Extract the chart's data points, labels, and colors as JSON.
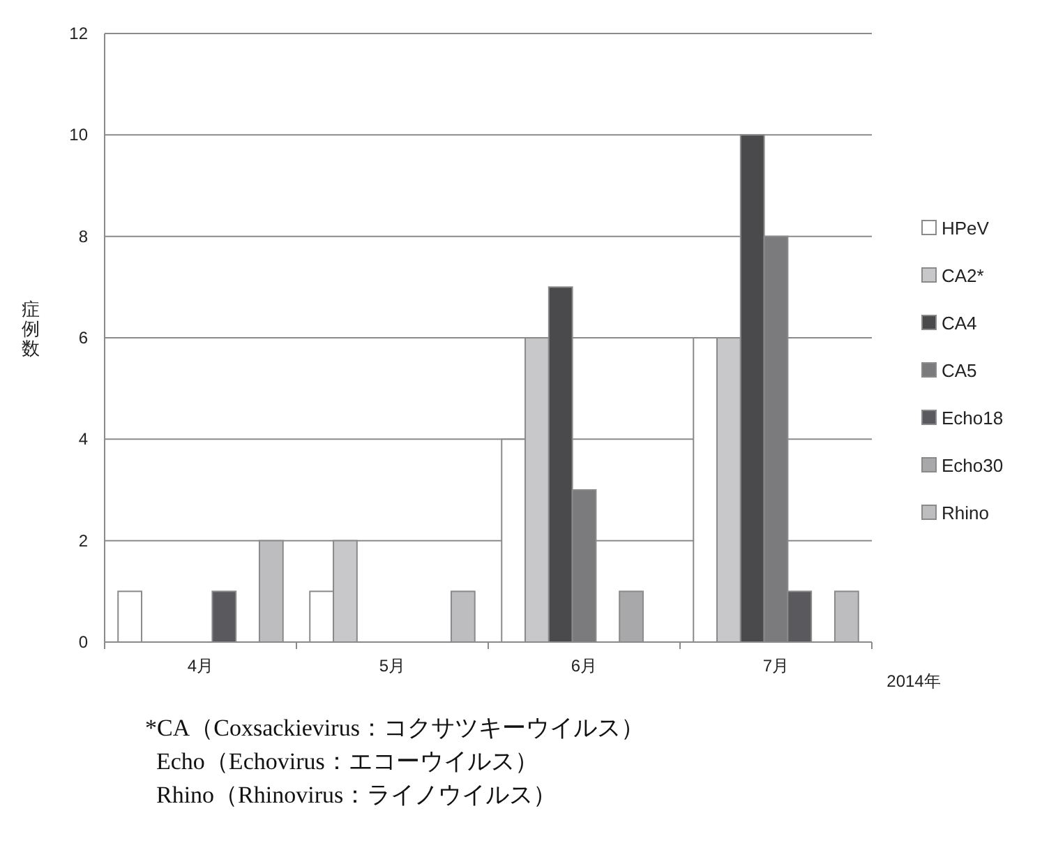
{
  "chart_data": {
    "type": "bar",
    "ylabel": "症例数",
    "xlabel": "2014年",
    "categories": [
      "4月",
      "5月",
      "6月",
      "7月"
    ],
    "series": [
      {
        "name": "HPeV",
        "color": "#ffffff",
        "values": [
          1,
          1,
          4,
          6
        ]
      },
      {
        "name": "CA2*",
        "color": "#c8c8ca",
        "values": [
          0,
          2,
          6,
          6
        ]
      },
      {
        "name": "CA4",
        "color": "#4a4a4c",
        "values": [
          0,
          0,
          7,
          10
        ]
      },
      {
        "name": "CA5",
        "color": "#7b7b7d",
        "values": [
          0,
          0,
          3,
          8
        ]
      },
      {
        "name": "Echo18",
        "color": "#5a5a5e",
        "values": [
          1,
          0,
          0,
          1
        ]
      },
      {
        "name": "Echo30",
        "color": "#a8a8aa",
        "values": [
          0,
          0,
          1,
          0
        ]
      },
      {
        "name": "Rhino",
        "color": "#bdbdbf",
        "values": [
          2,
          1,
          0,
          1
        ]
      }
    ],
    "ylim": [
      0,
      12
    ],
    "yticks": [
      0,
      2,
      4,
      6,
      8,
      10,
      12
    ],
    "grid": "y",
    "legend": "right",
    "annotations": [
      "*CA（Coxsackievirus：コクサツキーウイルス）",
      "Echo（Echovirus：エコーウイルス）",
      "Rhino（Rhinovirus：ライノウイルス）"
    ]
  }
}
